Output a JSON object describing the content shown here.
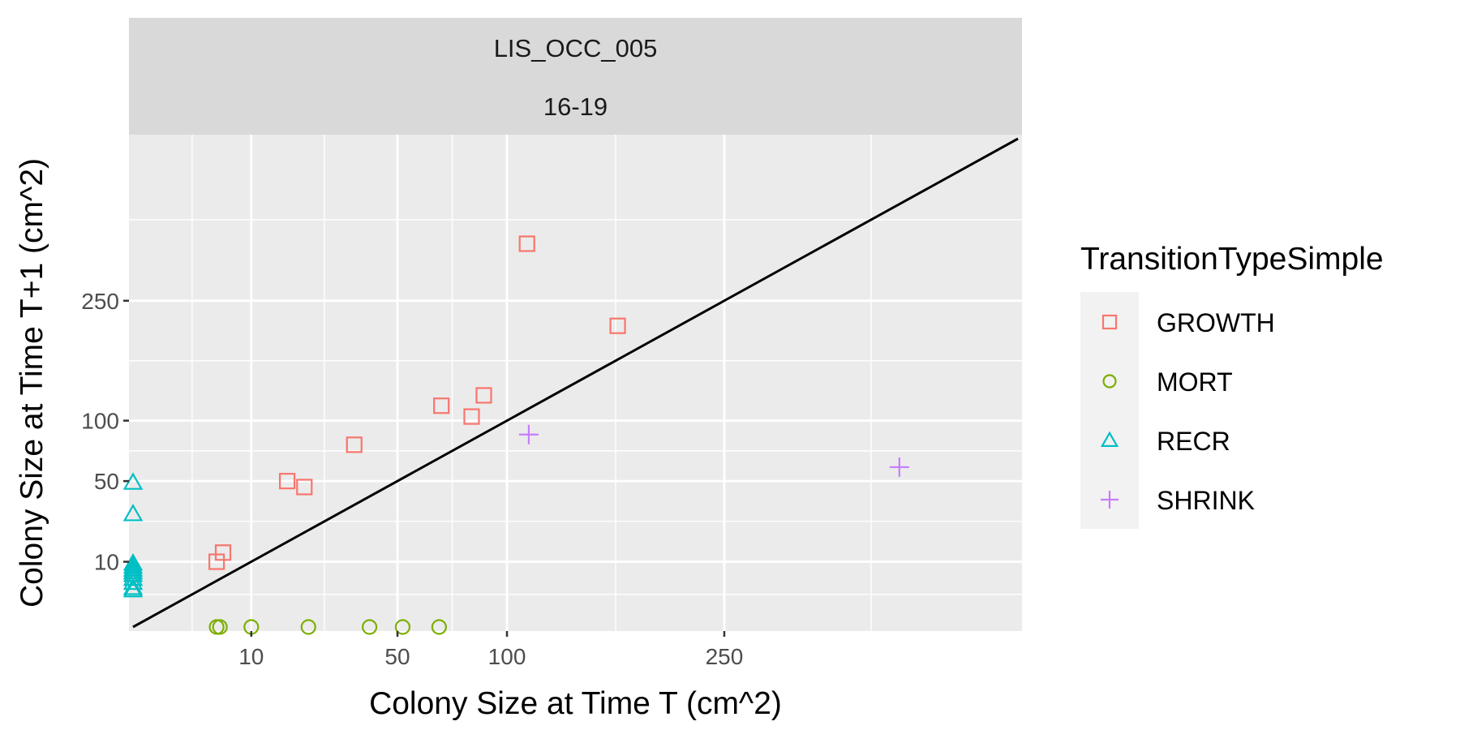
{
  "chart_data": {
    "type": "scatter",
    "facet": {
      "site": "LIS_OCC_005",
      "period": "16-19"
    },
    "xlabel": "Colony Size at Time T (cm^2)",
    "ylabel": "Colony Size at Time T+1 (cm^2)",
    "x_scale": "sqrt",
    "y_scale": "sqrt",
    "xlim": [
      0,
      560
    ],
    "ylim": [
      0,
      560
    ],
    "x_ticks": [
      10,
      50,
      100,
      250
    ],
    "x_tick_labels": [
      "10",
      "50",
      "100",
      "250"
    ],
    "y_ticks": [
      10,
      50,
      100,
      250
    ],
    "y_tick_labels": [
      "10",
      "50",
      "100",
      "250"
    ],
    "reference_line": "y = x",
    "grid": true,
    "legend": {
      "title": "TransitionTypeSimple",
      "position": "right"
    },
    "series": [
      {
        "name": "GROWTH",
        "color": "#F8766D",
        "shape": "square",
        "points": [
          [
            5,
            10
          ],
          [
            5.8,
            13
          ],
          [
            17,
            50
          ],
          [
            21,
            46
          ],
          [
            35,
            78
          ],
          [
            68,
            115
          ],
          [
            82,
            104
          ],
          [
            88,
            126
          ],
          [
            111,
            345
          ],
          [
            168,
            213
          ]
        ]
      },
      {
        "name": "MORT",
        "color": "#7CAE00",
        "shape": "circle",
        "points": [
          [
            5,
            0
          ],
          [
            5.4,
            0
          ],
          [
            10,
            0
          ],
          [
            22,
            0
          ],
          [
            40,
            0
          ],
          [
            52,
            0
          ],
          [
            67,
            0
          ]
        ]
      },
      {
        "name": "RECR",
        "color": "#00BFC4",
        "shape": "triangle",
        "points": [
          [
            0,
            49
          ],
          [
            0,
            30
          ],
          [
            0,
            9.5
          ],
          [
            0,
            8.6
          ],
          [
            0,
            7.8
          ],
          [
            0,
            7.1
          ],
          [
            0,
            6.4
          ],
          [
            0,
            5.5
          ],
          [
            0,
            4.6
          ],
          [
            0,
            3.6
          ],
          [
            0,
            3.2
          ]
        ]
      },
      {
        "name": "SHRINK",
        "color": "#C77CFF",
        "shape": "plus",
        "points": [
          [
            112,
            87
          ],
          [
            420,
            60
          ]
        ]
      }
    ]
  }
}
